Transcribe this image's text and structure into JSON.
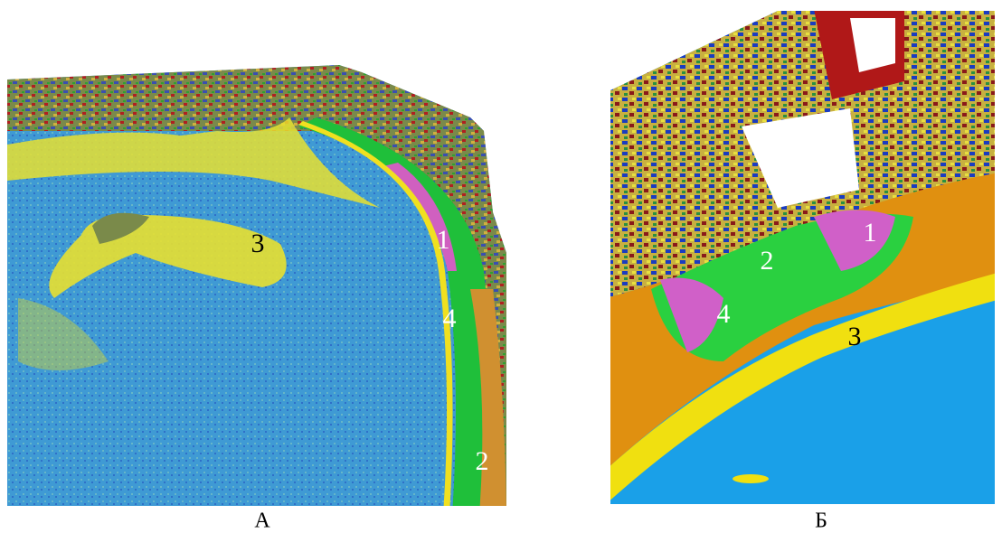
{
  "panels": [
    {
      "caption": "А",
      "annotations": [
        "1",
        "2",
        "3",
        "4"
      ]
    },
    {
      "caption": "Б",
      "annotations": [
        "1",
        "2",
        "3",
        "4"
      ]
    }
  ]
}
